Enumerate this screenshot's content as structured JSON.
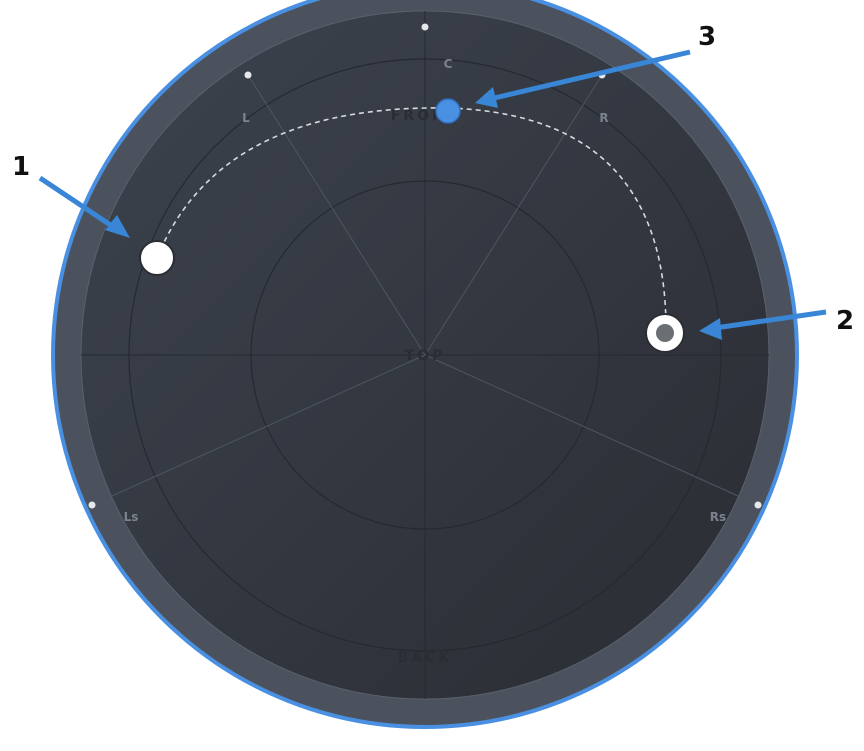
{
  "panner": {
    "speakers": [
      {
        "id": "C",
        "label": "C"
      },
      {
        "id": "L",
        "label": "L"
      },
      {
        "id": "R",
        "label": "R"
      },
      {
        "id": "Ls",
        "label": "Ls"
      },
      {
        "id": "Rs",
        "label": "Rs"
      }
    ],
    "zones": {
      "front": "FRONT",
      "top": "TOP",
      "back": "BACK"
    }
  },
  "annotations": {
    "callout_1": "1",
    "callout_2": "2",
    "callout_3": "3"
  },
  "colors": {
    "accent": "#4a90e2",
    "ring": "#4b525e",
    "field": "#33373f",
    "handle_start": "#ffffff",
    "handle_end_center": "#6b6e73"
  }
}
